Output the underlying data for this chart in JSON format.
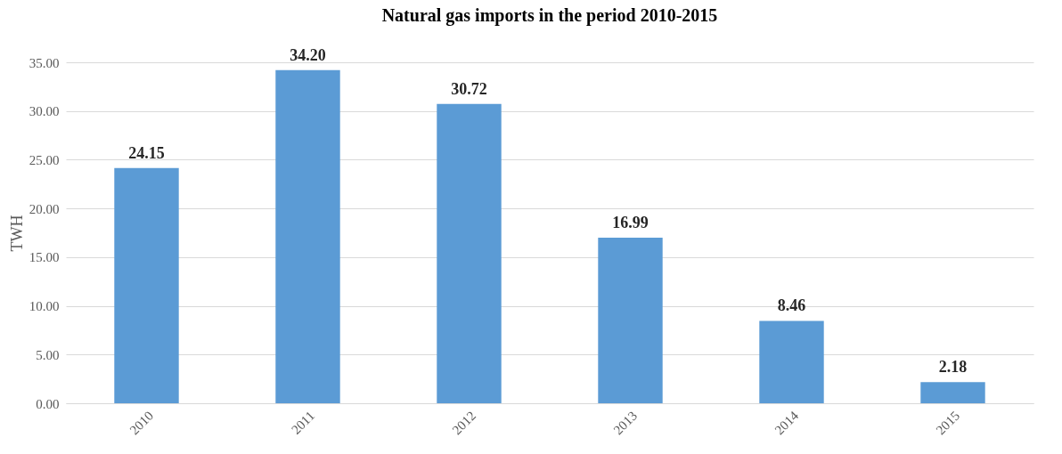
{
  "chart_data": {
    "type": "bar",
    "title": "Natural gas imports in the period 2010-2015",
    "ylabel": "TWH",
    "categories": [
      "2010",
      "2011",
      "2012",
      "2013",
      "2014",
      "2015"
    ],
    "values": [
      24.15,
      34.2,
      30.72,
      16.99,
      8.46,
      2.18
    ],
    "value_labels": [
      "24.15",
      "34.20",
      "30.72",
      "16.99",
      "8.46",
      "2.18"
    ],
    "color": "#5b9bd5",
    "ylim": [
      0,
      35
    ],
    "yticks": [
      {
        "value": 0,
        "label": "0.00"
      },
      {
        "value": 5,
        "label": "5.00"
      },
      {
        "value": 10,
        "label": "10.00"
      },
      {
        "value": 15,
        "label": "15.00"
      },
      {
        "value": 20,
        "label": "20.00"
      },
      {
        "value": 25,
        "label": "25.00"
      },
      {
        "value": 30,
        "label": "30.00"
      },
      {
        "value": 35,
        "label": "35.00"
      }
    ],
    "grid": "y"
  }
}
